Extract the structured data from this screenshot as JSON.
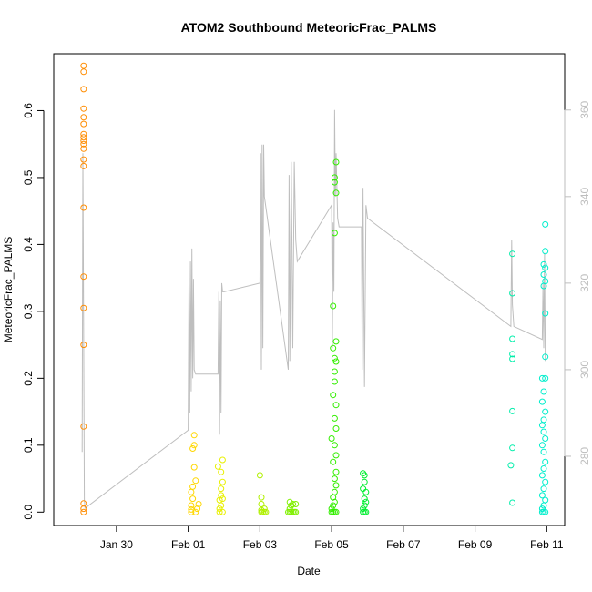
{
  "chart_data": {
    "type": "scatter",
    "title": "ATOM2 Southbound MeteoricFrac_PALMS",
    "xlabel": "Date",
    "ylabel": "MeteoricFrac_PALMS",
    "xlim": [
      "2017-01-28T06:00",
      "2017-02-11T12:00"
    ],
    "ylim": [
      -0.02,
      0.685
    ],
    "y2lim": [
      264,
      373
    ],
    "grid": false,
    "legend": "none",
    "x_ticks": [
      "Jan 30",
      "Feb 01",
      "Feb 03",
      "Feb 05",
      "Feb 07",
      "Feb 09",
      "Feb 11"
    ],
    "x_tick_values": [
      "2017-01-30",
      "2017-02-01",
      "2017-02-03",
      "2017-02-05",
      "2017-02-07",
      "2017-02-09",
      "2017-02-11"
    ],
    "y_ticks": [
      0.0,
      0.1,
      0.2,
      0.3,
      0.4,
      0.5,
      0.6
    ],
    "y_tick_labels": [
      "0.0",
      "0.1",
      "0.2",
      "0.3",
      "0.4",
      "0.5",
      "0.6"
    ],
    "y2_ticks": [
      280,
      300,
      320,
      340,
      360
    ],
    "y2_tick_labels": [
      "280",
      "300",
      "320",
      "340",
      "360"
    ],
    "colors": {
      "line": "#bebebe",
      "axis": "#000000",
      "secondary_axis": "#bebebe"
    },
    "series": [
      {
        "color": "#ff8c00",
        "points": [
          [
            "2017-01-29T02:00",
            0.0
          ],
          [
            "2017-01-29T02:00",
            0.005
          ],
          [
            "2017-01-29T02:00",
            0.013
          ],
          [
            "2017-01-29T02:00",
            0.128
          ],
          [
            "2017-01-29T02:00",
            0.25
          ],
          [
            "2017-01-29T02:00",
            0.305
          ],
          [
            "2017-01-29T02:00",
            0.352
          ],
          [
            "2017-01-29T02:00",
            0.455
          ],
          [
            "2017-01-29T02:00",
            0.517
          ],
          [
            "2017-01-29T02:00",
            0.527
          ],
          [
            "2017-01-29T02:00",
            0.543
          ],
          [
            "2017-01-29T02:00",
            0.55
          ],
          [
            "2017-01-29T02:00",
            0.555
          ],
          [
            "2017-01-29T02:00",
            0.56
          ],
          [
            "2017-01-29T02:00",
            0.565
          ],
          [
            "2017-01-29T02:00",
            0.58
          ],
          [
            "2017-01-29T02:00",
            0.59
          ],
          [
            "2017-01-29T02:00",
            0.603
          ],
          [
            "2017-01-29T02:00",
            0.632
          ],
          [
            "2017-01-29T02:00",
            0.658
          ],
          [
            "2017-01-29T02:00",
            0.667
          ]
        ]
      },
      {
        "color": "#ffd700",
        "points": [
          [
            "2017-02-01T02:00",
            0.0
          ],
          [
            "2017-02-01T02:00",
            0.004
          ],
          [
            "2017-02-01T02:00",
            0.01
          ],
          [
            "2017-02-01T03:00",
            0.02
          ],
          [
            "2017-02-01T02:00",
            0.03
          ],
          [
            "2017-02-01T03:00",
            0.038
          ],
          [
            "2017-02-01T05:00",
            0.047
          ],
          [
            "2017-02-01T04:00",
            0.067
          ],
          [
            "2017-02-01T03:00",
            0.095
          ],
          [
            "2017-02-01T04:00",
            0.1
          ],
          [
            "2017-02-01T04:00",
            0.115
          ],
          [
            "2017-02-01T06:00",
            0.005
          ],
          [
            "2017-02-01T07:00",
            0.012
          ],
          [
            "2017-02-01T05:00",
            0.0
          ]
        ]
      },
      {
        "color": "#e8f000",
        "points": [
          [
            "2017-02-01T21:00",
            0.0
          ],
          [
            "2017-02-01T21:00",
            0.005
          ],
          [
            "2017-02-01T22:00",
            0.01
          ],
          [
            "2017-02-01T21:00",
            0.018
          ],
          [
            "2017-02-01T22:00",
            0.025
          ],
          [
            "2017-02-01T22:00",
            0.035
          ],
          [
            "2017-02-01T23:00",
            0.045
          ],
          [
            "2017-02-01T22:00",
            0.06
          ],
          [
            "2017-02-01T20:00",
            0.068
          ],
          [
            "2017-02-01T23:00",
            0.078
          ],
          [
            "2017-02-01T23:00",
            0.0
          ],
          [
            "2017-02-01T23:00",
            0.02
          ]
        ]
      },
      {
        "color": "#b0f000",
        "points": [
          [
            "2017-02-03T01:00",
            0.0
          ],
          [
            "2017-02-03T02:00",
            0.0
          ],
          [
            "2017-02-03T03:00",
            0.0
          ],
          [
            "2017-02-03T04:00",
            0.0
          ],
          [
            "2017-02-03T01:00",
            0.003
          ],
          [
            "2017-02-03T03:00",
            0.005
          ],
          [
            "2017-02-03T01:00",
            0.012
          ],
          [
            "2017-02-03T01:00",
            0.022
          ],
          [
            "2017-02-03T00:00",
            0.055
          ]
        ]
      },
      {
        "color": "#80f000",
        "points": [
          [
            "2017-02-03T19:00",
            0.0
          ],
          [
            "2017-02-03T20:00",
            0.0
          ],
          [
            "2017-02-03T21:00",
            0.0
          ],
          [
            "2017-02-03T22:00",
            0.0
          ],
          [
            "2017-02-03T23:00",
            0.0
          ],
          [
            "2017-02-04T00:00",
            0.0
          ],
          [
            "2017-02-03T20:00",
            0.005
          ],
          [
            "2017-02-03T21:00",
            0.01
          ],
          [
            "2017-02-03T22:00",
            0.012
          ],
          [
            "2017-02-03T20:00",
            0.015
          ],
          [
            "2017-02-04T00:00",
            0.012
          ]
        ]
      },
      {
        "color": "#33ee00",
        "points": [
          [
            "2017-02-05T00:00",
            0.0
          ],
          [
            "2017-02-05T01:00",
            0.0
          ],
          [
            "2017-02-05T02:00",
            0.0
          ],
          [
            "2017-02-05T03:00",
            0.0
          ],
          [
            "2017-02-05T00:00",
            0.005
          ],
          [
            "2017-02-05T01:00",
            0.01
          ],
          [
            "2017-02-05T02:00",
            0.015
          ],
          [
            "2017-02-05T01:00",
            0.022
          ],
          [
            "2017-02-05T02:00",
            0.03
          ],
          [
            "2017-02-05T03:00",
            0.04
          ],
          [
            "2017-02-05T02:00",
            0.05
          ],
          [
            "2017-02-05T03:00",
            0.06
          ],
          [
            "2017-02-05T01:00",
            0.075
          ],
          [
            "2017-02-05T03:00",
            0.085
          ],
          [
            "2017-02-05T02:00",
            0.1
          ],
          [
            "2017-02-05T00:00",
            0.11
          ],
          [
            "2017-02-05T03:00",
            0.125
          ],
          [
            "2017-02-05T02:00",
            0.14
          ],
          [
            "2017-02-05T03:00",
            0.16
          ],
          [
            "2017-02-05T01:00",
            0.175
          ],
          [
            "2017-02-05T02:00",
            0.195
          ],
          [
            "2017-02-05T02:00",
            0.21
          ],
          [
            "2017-02-05T03:00",
            0.225
          ],
          [
            "2017-02-05T02:00",
            0.23
          ],
          [
            "2017-02-05T01:00",
            0.245
          ],
          [
            "2017-02-05T03:00",
            0.255
          ],
          [
            "2017-02-05T01:00",
            0.308
          ],
          [
            "2017-02-05T02:00",
            0.417
          ],
          [
            "2017-02-05T03:00",
            0.477
          ],
          [
            "2017-02-05T02:00",
            0.493
          ],
          [
            "2017-02-05T02:00",
            0.5
          ],
          [
            "2017-02-05T03:00",
            0.523
          ]
        ]
      },
      {
        "color": "#00ee30",
        "points": [
          [
            "2017-02-05T21:00",
            0.0
          ],
          [
            "2017-02-05T22:00",
            0.0
          ],
          [
            "2017-02-05T23:00",
            0.0
          ],
          [
            "2017-02-05T21:00",
            0.005
          ],
          [
            "2017-02-05T22:00",
            0.01
          ],
          [
            "2017-02-05T23:00",
            0.015
          ],
          [
            "2017-02-05T22:00",
            0.02
          ],
          [
            "2017-02-05T23:00",
            0.03
          ],
          [
            "2017-02-05T21:00",
            0.035
          ],
          [
            "2017-02-05T22:00",
            0.045
          ],
          [
            "2017-02-05T21:00",
            0.058
          ],
          [
            "2017-02-05T22:00",
            0.055
          ]
        ]
      },
      {
        "color": "#00eeaa",
        "points": [
          [
            "2017-02-10T01:00",
            0.014
          ],
          [
            "2017-02-10T00:00",
            0.07
          ],
          [
            "2017-02-10T01:00",
            0.096
          ],
          [
            "2017-02-10T01:00",
            0.151
          ],
          [
            "2017-02-10T01:00",
            0.229
          ],
          [
            "2017-02-10T01:00",
            0.236
          ],
          [
            "2017-02-10T01:00",
            0.259
          ],
          [
            "2017-02-10T01:00",
            0.327
          ],
          [
            "2017-02-10T01:00",
            0.386
          ]
        ]
      },
      {
        "color": "#00eecc",
        "points": [
          [
            "2017-02-10T21:00",
            0.0
          ],
          [
            "2017-02-10T22:00",
            0.0
          ],
          [
            "2017-02-10T23:00",
            0.0
          ],
          [
            "2017-02-10T21:00",
            0.005
          ],
          [
            "2017-02-10T22:00",
            0.01
          ],
          [
            "2017-02-10T23:00",
            0.018
          ],
          [
            "2017-02-10T21:00",
            0.025
          ],
          [
            "2017-02-10T22:00",
            0.035
          ],
          [
            "2017-02-10T23:00",
            0.045
          ],
          [
            "2017-02-10T21:00",
            0.055
          ],
          [
            "2017-02-10T22:00",
            0.065
          ],
          [
            "2017-02-10T23:00",
            0.075
          ],
          [
            "2017-02-10T22:00",
            0.09
          ],
          [
            "2017-02-10T21:00",
            0.1
          ],
          [
            "2017-02-10T23:00",
            0.11
          ],
          [
            "2017-02-10T22:00",
            0.12
          ],
          [
            "2017-02-10T21:00",
            0.13
          ],
          [
            "2017-02-10T22:00",
            0.138
          ],
          [
            "2017-02-10T23:00",
            0.15
          ],
          [
            "2017-02-10T21:00",
            0.165
          ],
          [
            "2017-02-10T22:00",
            0.18
          ],
          [
            "2017-02-10T23:00",
            0.2
          ],
          [
            "2017-02-10T21:00",
            0.2
          ],
          [
            "2017-02-10T23:00",
            0.232
          ],
          [
            "2017-02-10T23:00",
            0.297
          ],
          [
            "2017-02-10T22:00",
            0.338
          ],
          [
            "2017-02-10T23:00",
            0.345
          ],
          [
            "2017-02-10T22:00",
            0.355
          ],
          [
            "2017-02-10T23:00",
            0.365
          ],
          [
            "2017-02-10T22:00",
            0.37
          ],
          [
            "2017-02-10T23:00",
            0.39
          ],
          [
            "2017-02-10T23:00",
            0.43
          ]
        ]
      }
    ],
    "secondary_line": {
      "axis": "right",
      "points": [
        [
          "2017-01-29T01:00",
          281
        ],
        [
          "2017-01-29T01:30",
          350
        ],
        [
          "2017-01-29T02:00",
          310
        ],
        [
          "2017-01-29T02:30",
          270
        ],
        [
          "2017-01-29T03:00",
          268
        ],
        [
          "2017-02-01T00:00",
          286
        ],
        [
          "2017-02-01T00:30",
          320
        ],
        [
          "2017-02-01T01:00",
          290
        ],
        [
          "2017-02-01T01:30",
          325
        ],
        [
          "2017-02-01T02:00",
          295
        ],
        [
          "2017-02-01T02:30",
          328
        ],
        [
          "2017-02-01T03:00",
          298
        ],
        [
          "2017-02-01T03:30",
          321
        ],
        [
          "2017-02-01T04:00",
          300
        ],
        [
          "2017-02-01T05:00",
          299
        ],
        [
          "2017-02-01T20:00",
          299
        ],
        [
          "2017-02-01T20:30",
          318
        ],
        [
          "2017-02-01T21:00",
          285
        ],
        [
          "2017-02-01T21:30",
          316
        ],
        [
          "2017-02-01T22:00",
          290
        ],
        [
          "2017-02-01T22:30",
          320
        ],
        [
          "2017-02-01T23:00",
          318
        ],
        [
          "2017-02-02T00:00",
          318
        ],
        [
          "2017-02-03T00:00",
          320
        ],
        [
          "2017-02-03T00:30",
          350
        ],
        [
          "2017-02-03T01:00",
          300
        ],
        [
          "2017-02-03T01:30",
          352
        ],
        [
          "2017-02-03T02:00",
          305
        ],
        [
          "2017-02-03T02:30",
          352
        ],
        [
          "2017-02-03T03:00",
          340
        ],
        [
          "2017-02-03T19:00",
          300
        ],
        [
          "2017-02-03T19:30",
          345
        ],
        [
          "2017-02-03T20:00",
          302
        ],
        [
          "2017-02-03T21:00",
          348
        ],
        [
          "2017-02-03T22:00",
          305
        ],
        [
          "2017-02-03T23:00",
          348
        ],
        [
          "2017-02-04T00:00",
          330
        ],
        [
          "2017-02-04T01:00",
          325
        ],
        [
          "2017-02-05T00:00",
          338
        ],
        [
          "2017-02-05T00:30",
          305
        ],
        [
          "2017-02-05T01:00",
          334
        ],
        [
          "2017-02-05T01:30",
          318
        ],
        [
          "2017-02-05T02:00",
          360
        ],
        [
          "2017-02-05T02:30",
          340
        ],
        [
          "2017-02-05T03:00",
          350
        ],
        [
          "2017-02-05T04:00",
          335
        ],
        [
          "2017-02-05T05:00",
          333
        ],
        [
          "2017-02-05T20:00",
          333
        ],
        [
          "2017-02-05T20:30",
          300
        ],
        [
          "2017-02-05T21:00",
          342
        ],
        [
          "2017-02-05T22:00",
          296
        ],
        [
          "2017-02-05T23:00",
          338
        ],
        [
          "2017-02-06T00:00",
          335
        ],
        [
          "2017-02-10T00:00",
          310
        ],
        [
          "2017-02-10T00:30",
          330
        ],
        [
          "2017-02-10T01:00",
          315
        ],
        [
          "2017-02-10T02:00",
          310
        ],
        [
          "2017-02-10T21:00",
          307
        ],
        [
          "2017-02-10T21:30",
          320
        ],
        [
          "2017-02-10T22:00",
          305
        ],
        [
          "2017-02-10T22:30",
          327
        ],
        [
          "2017-02-10T23:00",
          302
        ],
        [
          "2017-02-10T23:30",
          308
        ]
      ]
    }
  }
}
